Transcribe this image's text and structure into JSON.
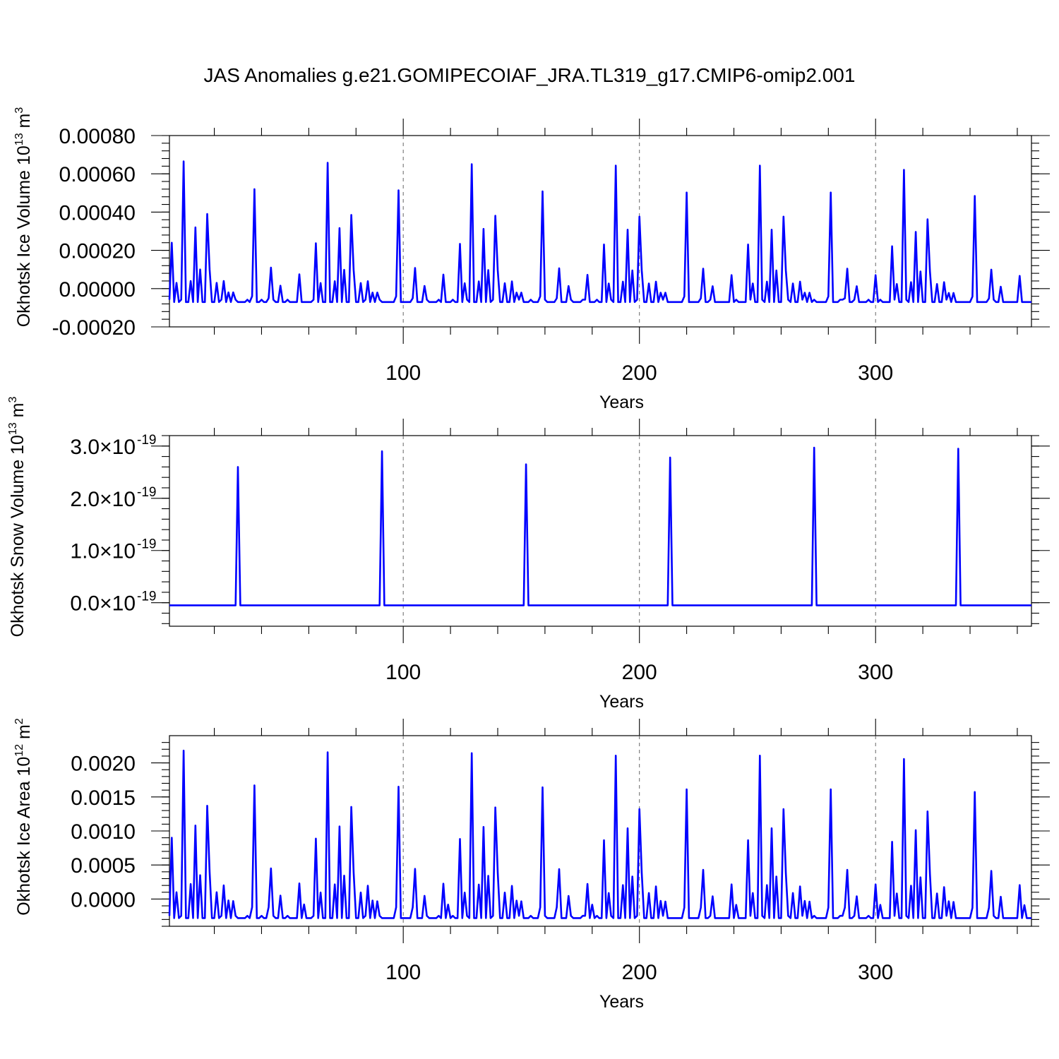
{
  "title": "JAS Anomalies g.e21.GOMIPECOIAF_JRA.TL319_g17.CMIP6-omip2.001",
  "colors": {
    "series": "#0000ff",
    "grid": "#666666",
    "axis": "#000000"
  },
  "chart_data": [
    {
      "type": "line",
      "id": "ice-volume",
      "ylabel": "Okhotsk Ice Volume 10",
      "ylabel_sup": "13",
      "ylabel_unit": " m",
      "ylabel_unit_sup": "3",
      "xlabel": "Years",
      "xlim": [
        1,
        366
      ],
      "ylim": [
        -0.0002,
        0.0008
      ],
      "yticks": [
        -0.0002,
        0.0,
        0.0002,
        0.0004,
        0.0006,
        0.0008
      ],
      "yticklabels": [
        "-0.00020",
        "0.00000",
        "0.00020",
        "0.00040",
        "0.00060",
        "0.00080"
      ],
      "xticks": [
        100,
        200,
        300
      ],
      "xticklabels": [
        "100",
        "200",
        "300"
      ],
      "grid": "x dashed",
      "baseline": -7e-05,
      "pattern_period": 61,
      "spikes": [
        [
          2,
          0.00024
        ],
        [
          4,
          3e-05
        ],
        [
          7,
          0.000665
        ],
        [
          10,
          4e-05
        ],
        [
          12,
          0.00032
        ],
        [
          14,
          0.0001
        ],
        [
          17,
          0.00039
        ],
        [
          18,
          0.0001
        ],
        [
          21,
          3e-05
        ],
        [
          24,
          4e-05
        ],
        [
          26,
          -2e-05
        ],
        [
          28,
          -2e-05
        ],
        [
          36,
          -4e-05
        ],
        [
          37,
          0.00052
        ],
        [
          43,
          -5e-05
        ],
        [
          44,
          0.00011
        ],
        [
          48,
          1.5e-05
        ],
        [
          56,
          7.5e-05
        ]
      ],
      "spike_scale": [
        1.0,
        0.99,
        0.98,
        0.97,
        0.97,
        0.94
      ]
    },
    {
      "type": "line",
      "id": "snow-volume",
      "ylabel": "Okhotsk Snow Volume 10",
      "ylabel_sup": "13",
      "ylabel_unit": " m",
      "ylabel_unit_sup": "3",
      "xlabel": "Years",
      "xlim": [
        1,
        366
      ],
      "ylim": [
        -4.5e-20,
        3.2e-19
      ],
      "yticks": [
        0.0,
        1e-19,
        2e-19,
        3e-19
      ],
      "yticklabels": [
        "0.0×10",
        "1.0×10",
        "2.0×10",
        "3.0×10"
      ],
      "ytick_exponent": "-19",
      "xticks": [
        100,
        200,
        300
      ],
      "xticklabels": [
        "100",
        "200",
        "300"
      ],
      "grid": "x dashed",
      "baseline": -5e-21,
      "spikes": [
        [
          30,
          2.6e-19
        ],
        [
          91,
          2.9e-19
        ],
        [
          152,
          2.65e-19
        ],
        [
          213,
          2.78e-19
        ],
        [
          274,
          2.97e-19
        ],
        [
          335,
          2.95e-19
        ]
      ]
    },
    {
      "type": "line",
      "id": "ice-area",
      "ylabel": "Okhotsk Ice Area 10",
      "ylabel_sup": "12",
      "ylabel_unit": " m",
      "ylabel_unit_sup": "2",
      "xlabel": "Years",
      "xlim": [
        1,
        366
      ],
      "ylim": [
        -0.0004,
        0.0024
      ],
      "yticks": [
        0.0,
        0.0005,
        0.001,
        0.0015,
        0.002
      ],
      "yticklabels": [
        "0.0000",
        "0.0005",
        "0.0010",
        "0.0015",
        "0.0020"
      ],
      "xticks": [
        100,
        200,
        300
      ],
      "xticklabels": [
        "100",
        "200",
        "300"
      ],
      "grid": "x dashed",
      "baseline": -0.00028,
      "pattern_period": 61,
      "spikes": [
        [
          2,
          0.0009
        ],
        [
          4,
          0.0001
        ],
        [
          7,
          0.00218
        ],
        [
          10,
          0.00022
        ],
        [
          12,
          0.00108
        ],
        [
          14,
          0.00035
        ],
        [
          17,
          0.00137
        ],
        [
          18,
          0.0004
        ],
        [
          21,
          0.0001
        ],
        [
          24,
          0.0002
        ],
        [
          26,
          -2e-05
        ],
        [
          28,
          -3e-05
        ],
        [
          36,
          -0.00012
        ],
        [
          37,
          0.00167
        ],
        [
          43,
          -0.00012
        ],
        [
          44,
          0.00045
        ],
        [
          48,
          5e-05
        ],
        [
          56,
          0.00023
        ],
        [
          58,
          -8e-05
        ]
      ],
      "spike_scale": [
        1.0,
        0.99,
        0.985,
        0.97,
        0.97,
        0.95
      ]
    }
  ]
}
